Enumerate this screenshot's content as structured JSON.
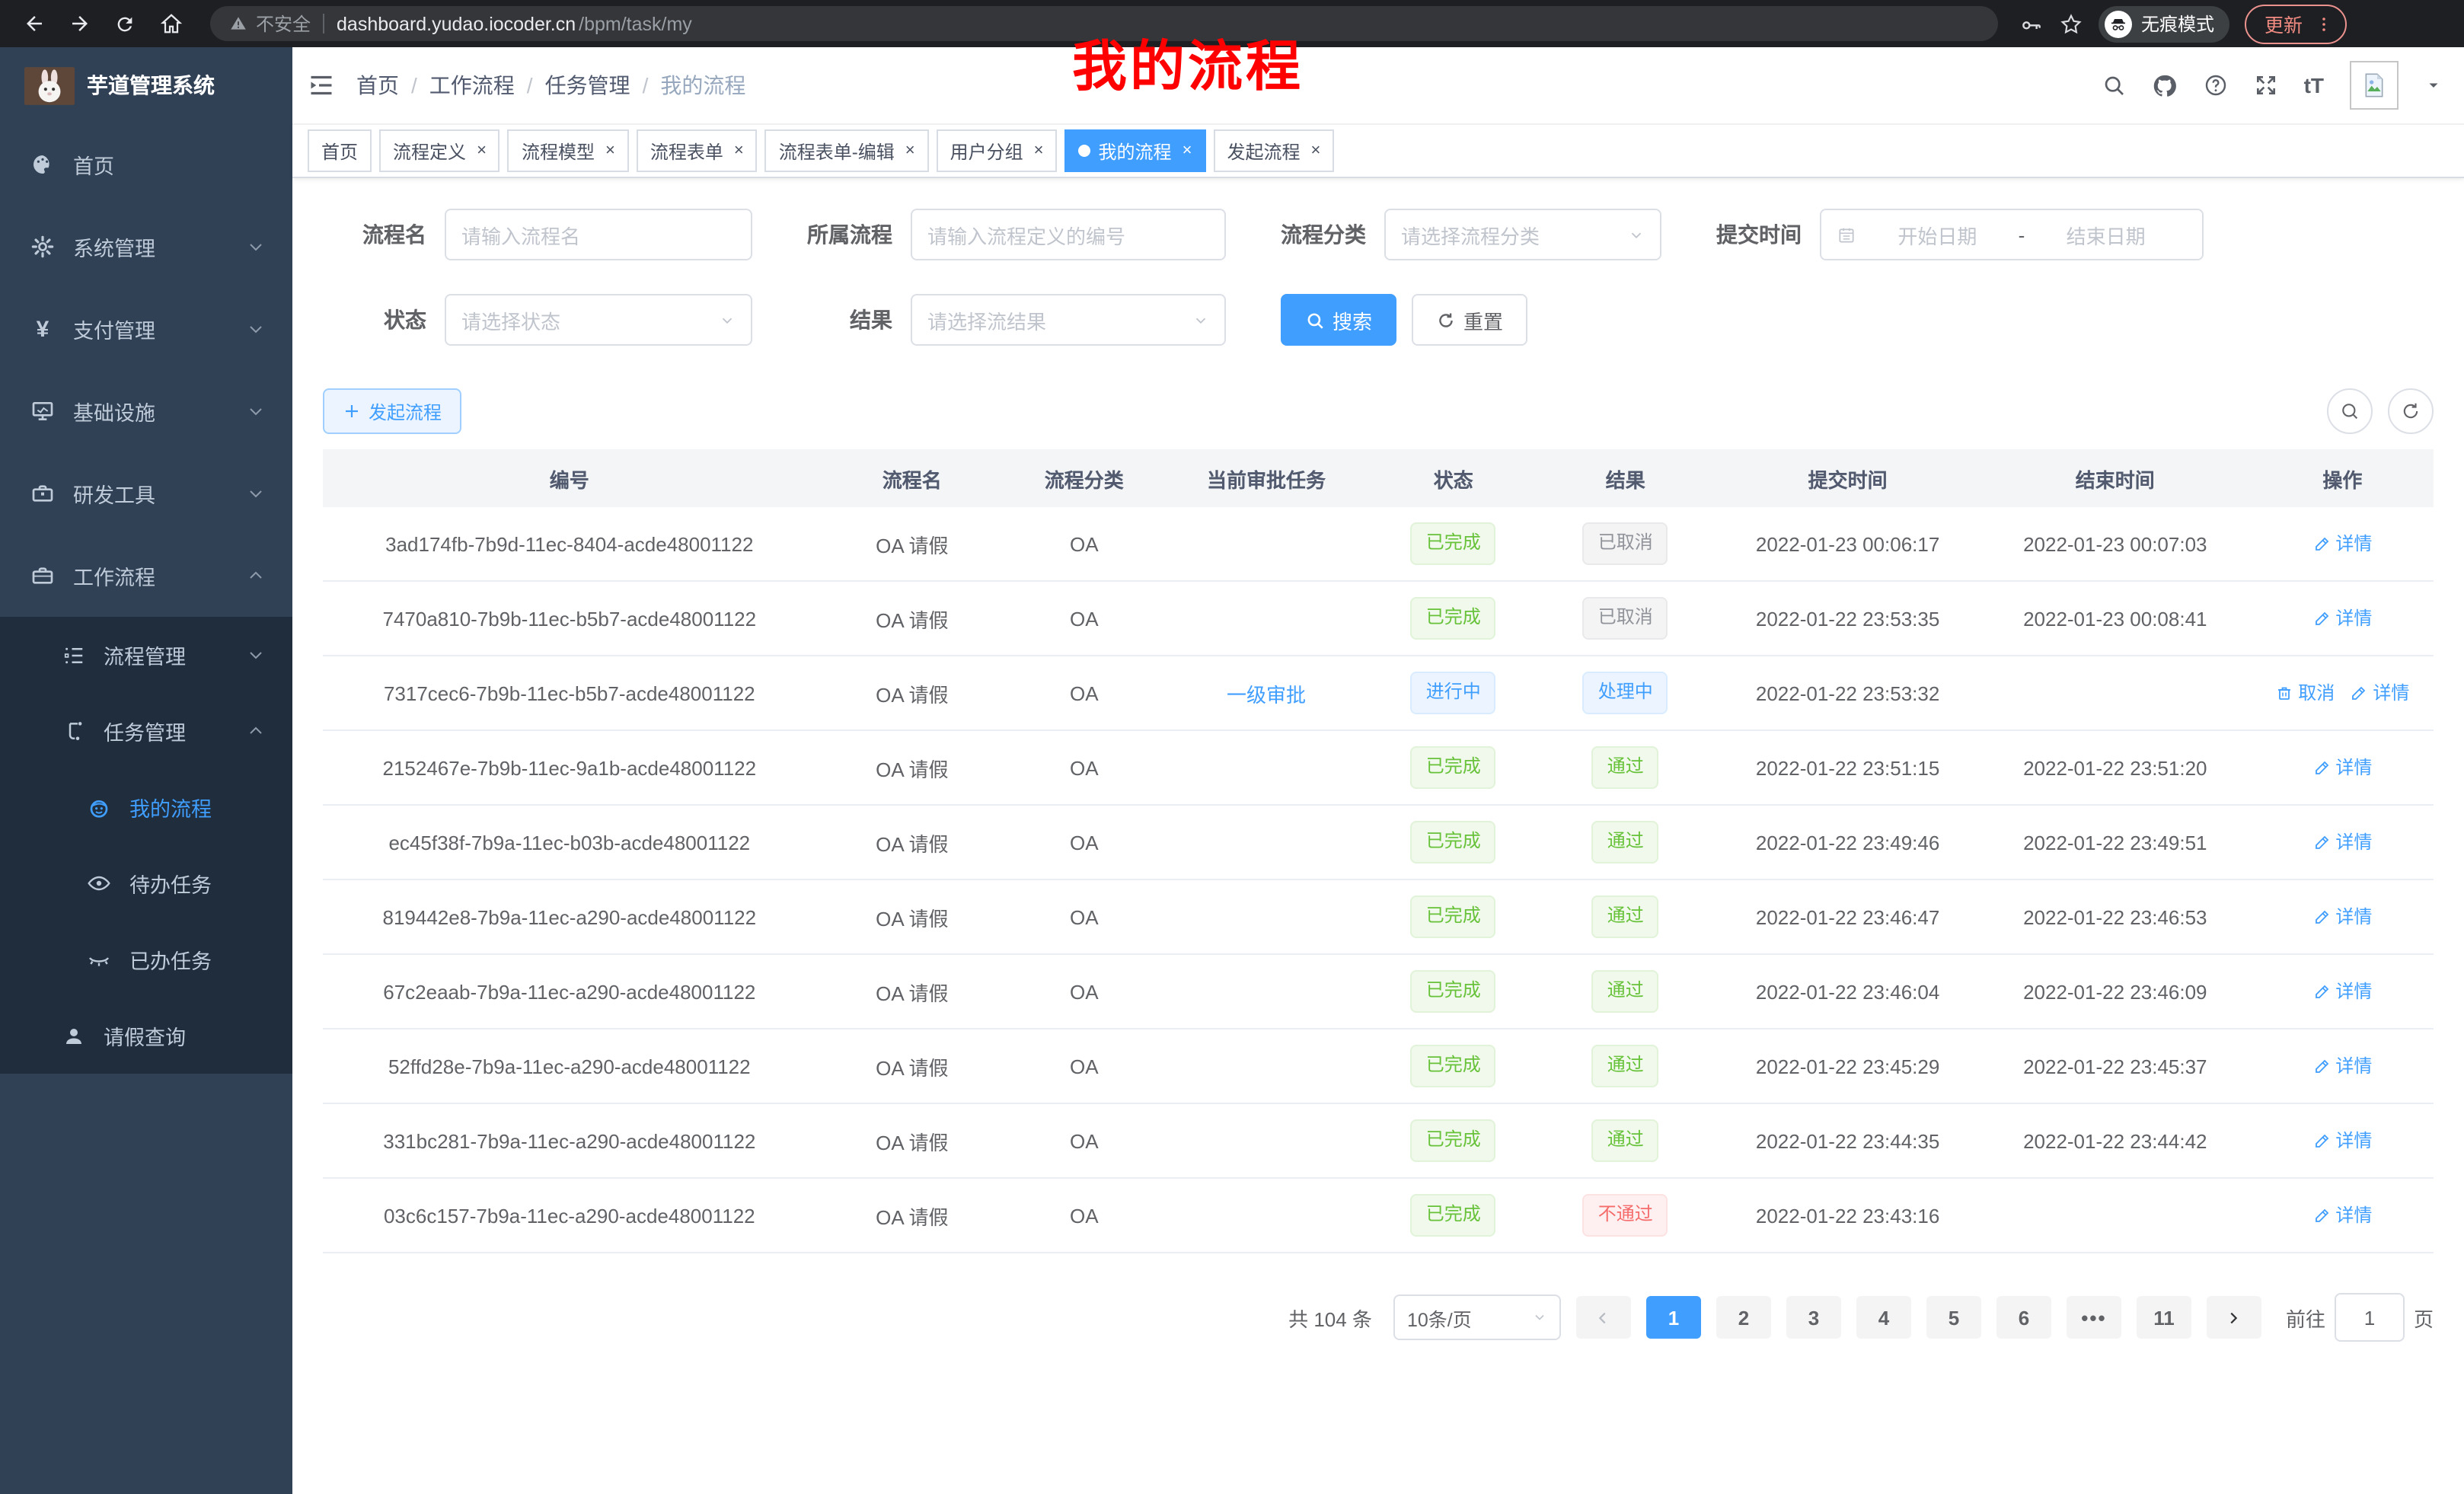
{
  "browser": {
    "security_warning": "不安全",
    "url_host": "dashboard.yudao.iocoder.cn",
    "url_path": "/bpm/task/my",
    "incognito_label": "无痕模式",
    "update_label": "更新"
  },
  "colors": {
    "accent": "#409eff",
    "success": "#67c23a",
    "danger": "#f56c6c",
    "info": "#909399",
    "annotation": "#ff0000"
  },
  "sidebar": {
    "app_title": "芋道管理系统",
    "menu": [
      {
        "key": "home",
        "label": "首页",
        "icon": "dashboard-icon",
        "section": "root",
        "level": 1
      },
      {
        "key": "system",
        "label": "系统管理",
        "icon": "gear-icon",
        "section": "root",
        "level": 1,
        "chevron": "down"
      },
      {
        "key": "payment",
        "label": "支付管理",
        "icon": "yen-icon",
        "section": "root",
        "level": 1,
        "chevron": "down"
      },
      {
        "key": "infra",
        "label": "基础设施",
        "icon": "monitor-icon",
        "section": "root",
        "level": 1,
        "chevron": "down"
      },
      {
        "key": "devtools",
        "label": "研发工具",
        "icon": "toolbox-icon",
        "section": "root",
        "level": 1,
        "chevron": "down"
      },
      {
        "key": "workflow",
        "label": "工作流程",
        "icon": "briefcase-icon",
        "section": "root",
        "level": 1,
        "chevron": "up"
      },
      {
        "key": "process-mgmt",
        "label": "流程管理",
        "icon": "list-icon",
        "section": "sub",
        "level": 2,
        "chevron": "down"
      },
      {
        "key": "task-mgmt",
        "label": "任务管理",
        "icon": "tree-icon",
        "section": "sub",
        "level": 2,
        "chevron": "up"
      },
      {
        "key": "my-process",
        "label": "我的流程",
        "icon": "robot-icon",
        "section": "sub",
        "level": 3,
        "active": true
      },
      {
        "key": "todo-tasks",
        "label": "待办任务",
        "icon": "eye-open-icon",
        "section": "sub",
        "level": 3
      },
      {
        "key": "done-tasks",
        "label": "已办任务",
        "icon": "eye-closed-icon",
        "section": "sub",
        "level": 3
      },
      {
        "key": "leave-query",
        "label": "请假查询",
        "icon": "user-icon",
        "section": "sub",
        "level": 2
      }
    ]
  },
  "navbar": {
    "font_icon_text": "tT",
    "icons": [
      {
        "name": "search-icon"
      },
      {
        "name": "github-icon"
      },
      {
        "name": "help-icon"
      },
      {
        "name": "fullscreen-icon"
      },
      {
        "name": "font-size-icon",
        "text": "tT"
      }
    ]
  },
  "breadcrumb": [
    "首页",
    "工作流程",
    "任务管理",
    "我的流程"
  ],
  "breadcrumb_separator": "/",
  "overlay": {
    "title": "我的流程"
  },
  "tabs": [
    {
      "label": "首页",
      "closable": false,
      "active": false
    },
    {
      "label": "流程定义",
      "closable": true,
      "active": false
    },
    {
      "label": "流程模型",
      "closable": true,
      "active": false
    },
    {
      "label": "流程表单",
      "closable": true,
      "active": false
    },
    {
      "label": "流程表单-编辑",
      "closable": true,
      "active": false
    },
    {
      "label": "用户分组",
      "closable": true,
      "active": false
    },
    {
      "label": "我的流程",
      "closable": true,
      "active": true
    },
    {
      "label": "发起流程",
      "closable": true,
      "active": false
    }
  ],
  "filters": {
    "name_label": "流程名",
    "name_placeholder": "请输入流程名",
    "owner_label": "所属流程",
    "owner_placeholder": "请输入流程定义的编号",
    "category_label": "流程分类",
    "category_placeholder": "请选择流程分类",
    "time_label": "提交时间",
    "time_start": "开始日期",
    "time_sep": "-",
    "time_end": "结束日期",
    "status_label": "状态",
    "status_placeholder": "请选择状态",
    "result_label": "结果",
    "result_placeholder": "请选择流结果",
    "search_label": "搜索",
    "reset_label": "重置"
  },
  "toolbar": {
    "create_label": "发起流程"
  },
  "table": {
    "columns": [
      "编号",
      "流程名",
      "流程分类",
      "当前审批任务",
      "状态",
      "结果",
      "提交时间",
      "结束时间",
      "操作"
    ],
    "rows": [
      {
        "id": "3ad174fb-7b9d-11ec-8404-acde48001122",
        "name": "OA 请假",
        "category": "OA",
        "current_task": "",
        "status": {
          "text": "已完成",
          "type": "success"
        },
        "result": {
          "text": "已取消",
          "type": "info"
        },
        "submit_time": "2022-01-23 00:06:17",
        "end_time": "2022-01-23 00:07:03",
        "actions": [
          {
            "label": "详情",
            "type": "detail"
          }
        ]
      },
      {
        "id": "7470a810-7b9b-11ec-b5b7-acde48001122",
        "name": "OA 请假",
        "category": "OA",
        "current_task": "",
        "status": {
          "text": "已完成",
          "type": "success"
        },
        "result": {
          "text": "已取消",
          "type": "info"
        },
        "submit_time": "2022-01-22 23:53:35",
        "end_time": "2022-01-23 00:08:41",
        "actions": [
          {
            "label": "详情",
            "type": "detail"
          }
        ]
      },
      {
        "id": "7317cec6-7b9b-11ec-b5b7-acde48001122",
        "name": "OA 请假",
        "category": "OA",
        "current_task": "一级审批",
        "status": {
          "text": "进行中",
          "type": "primary"
        },
        "result": {
          "text": "处理中",
          "type": "primary"
        },
        "submit_time": "2022-01-22 23:53:32",
        "end_time": "",
        "actions": [
          {
            "label": "取消",
            "type": "cancel"
          },
          {
            "label": "详情",
            "type": "detail"
          }
        ]
      },
      {
        "id": "2152467e-7b9b-11ec-9a1b-acde48001122",
        "name": "OA 请假",
        "category": "OA",
        "current_task": "",
        "status": {
          "text": "已完成",
          "type": "success"
        },
        "result": {
          "text": "通过",
          "type": "success"
        },
        "submit_time": "2022-01-22 23:51:15",
        "end_time": "2022-01-22 23:51:20",
        "actions": [
          {
            "label": "详情",
            "type": "detail"
          }
        ]
      },
      {
        "id": "ec45f38f-7b9a-11ec-b03b-acde48001122",
        "name": "OA 请假",
        "category": "OA",
        "current_task": "",
        "status": {
          "text": "已完成",
          "type": "success"
        },
        "result": {
          "text": "通过",
          "type": "success"
        },
        "submit_time": "2022-01-22 23:49:46",
        "end_time": "2022-01-22 23:49:51",
        "actions": [
          {
            "label": "详情",
            "type": "detail"
          }
        ]
      },
      {
        "id": "819442e8-7b9a-11ec-a290-acde48001122",
        "name": "OA 请假",
        "category": "OA",
        "current_task": "",
        "status": {
          "text": "已完成",
          "type": "success"
        },
        "result": {
          "text": "通过",
          "type": "success"
        },
        "submit_time": "2022-01-22 23:46:47",
        "end_time": "2022-01-22 23:46:53",
        "actions": [
          {
            "label": "详情",
            "type": "detail"
          }
        ]
      },
      {
        "id": "67c2eaab-7b9a-11ec-a290-acde48001122",
        "name": "OA 请假",
        "category": "OA",
        "current_task": "",
        "status": {
          "text": "已完成",
          "type": "success"
        },
        "result": {
          "text": "通过",
          "type": "success"
        },
        "submit_time": "2022-01-22 23:46:04",
        "end_time": "2022-01-22 23:46:09",
        "actions": [
          {
            "label": "详情",
            "type": "detail"
          }
        ]
      },
      {
        "id": "52ffd28e-7b9a-11ec-a290-acde48001122",
        "name": "OA 请假",
        "category": "OA",
        "current_task": "",
        "status": {
          "text": "已完成",
          "type": "success"
        },
        "result": {
          "text": "通过",
          "type": "success"
        },
        "submit_time": "2022-01-22 23:45:29",
        "end_time": "2022-01-22 23:45:37",
        "actions": [
          {
            "label": "详情",
            "type": "detail"
          }
        ]
      },
      {
        "id": "331bc281-7b9a-11ec-a290-acde48001122",
        "name": "OA 请假",
        "category": "OA",
        "current_task": "",
        "status": {
          "text": "已完成",
          "type": "success"
        },
        "result": {
          "text": "通过",
          "type": "success"
        },
        "submit_time": "2022-01-22 23:44:35",
        "end_time": "2022-01-22 23:44:42",
        "actions": [
          {
            "label": "详情",
            "type": "detail"
          }
        ]
      },
      {
        "id": "03c6c157-7b9a-11ec-a290-acde48001122",
        "name": "OA 请假",
        "category": "OA",
        "current_task": "",
        "status": {
          "text": "已完成",
          "type": "success"
        },
        "result": {
          "text": "不通过",
          "type": "danger"
        },
        "submit_time": "2022-01-22 23:43:16",
        "end_time": "",
        "actions": [
          {
            "label": "详情",
            "type": "detail"
          }
        ]
      }
    ]
  },
  "pagination": {
    "total_label": "共 104 条",
    "per_page": "10条/页",
    "pages": [
      "1",
      "2",
      "3",
      "4",
      "5",
      "6",
      "more",
      "11"
    ],
    "active_page": "1",
    "goto_prefix": "前往",
    "goto_value": "1",
    "goto_suffix": "页"
  }
}
